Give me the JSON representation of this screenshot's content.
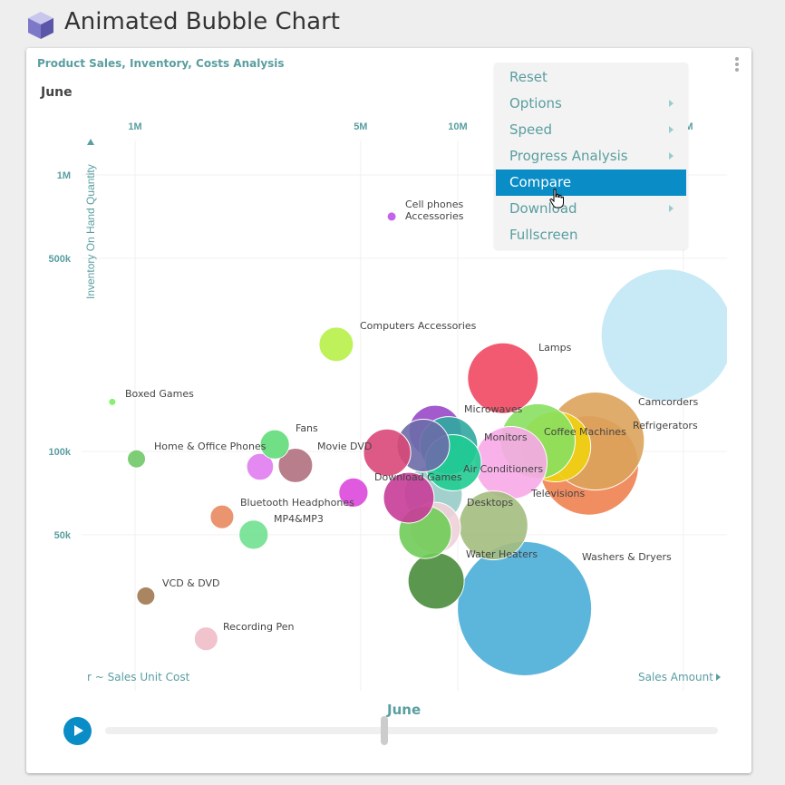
{
  "page": {
    "title": "Animated Bubble Chart"
  },
  "card": {
    "title": "Product Sales, Inventory, Costs Analysis",
    "period": "June"
  },
  "menu": {
    "items": [
      {
        "label": "Reset",
        "submenu": false
      },
      {
        "label": "Options",
        "submenu": true
      },
      {
        "label": "Speed",
        "submenu": true
      },
      {
        "label": "Progress Analysis",
        "submenu": true
      },
      {
        "label": "Compare",
        "submenu": false,
        "active": true
      },
      {
        "label": "Download",
        "submenu": true
      },
      {
        "label": "Fullscreen",
        "submenu": false
      }
    ]
  },
  "timeline": {
    "label": "June",
    "progress": 0.455,
    "play_label": "play"
  },
  "chart_data": {
    "type": "scatter",
    "subtype": "bubble",
    "title": "June",
    "xlabel": "Sales Amount",
    "ylabel": "Inventory On Hand Quantity",
    "size_label": "r ~ Sales Unit Cost",
    "xscale": "log",
    "yscale": "log",
    "xticks": [
      {
        "v": 1000000,
        "label": "1M"
      },
      {
        "v": 5000000,
        "label": "5M"
      },
      {
        "v": 10000000,
        "label": "10M"
      },
      {
        "v": 50000000,
        "label": "50M"
      }
    ],
    "yticks": [
      {
        "v": 1000000,
        "label": "1M"
      },
      {
        "v": 500000,
        "label": "500k"
      },
      {
        "v": 100000,
        "label": "100k"
      },
      {
        "v": 50000,
        "label": "50k"
      }
    ],
    "grid": true,
    "points": [
      {
        "name": "",
        "x": 44.6,
        "y": 263,
        "cost": 533,
        "color": "#c2e7f5"
      },
      {
        "name": "Washers & Dryers",
        "x": 16.1,
        "y": 27,
        "cost": 548,
        "color": "#4aaed8"
      },
      {
        "name": "Refrigerators",
        "x": 25.5,
        "y": 89,
        "cost": 300,
        "color": "#f08250"
      },
      {
        "name": "Camcorders",
        "x": 26.7,
        "y": 109,
        "cost": 292,
        "color": "#dba35c"
      },
      {
        "name": "Televisions",
        "x": 20.1,
        "y": 104,
        "cost": 150,
        "color": "#f0d010"
      },
      {
        "name": "Coffee Machines",
        "x": 17.7,
        "y": 109,
        "cost": 170,
        "color": "#88e060"
      },
      {
        "name": "Lamps",
        "x": 13.8,
        "y": 184,
        "cost": 152,
        "color": "#f04860"
      },
      {
        "name": "Monitors",
        "x": 14.6,
        "y": 91,
        "cost": 160,
        "color": "#f8a8e8"
      },
      {
        "name": "Desktops",
        "x": 12.9,
        "y": 54,
        "cost": 144,
        "color": "#a4bc80"
      },
      {
        "name": "Water Heaters",
        "x": 8.57,
        "y": 34,
        "cost": 96,
        "color": "#4a8c3c"
      },
      {
        "name": "",
        "x": 8.4,
        "y": 70,
        "cost": 102,
        "color": "#98ccc8"
      },
      {
        "name": "",
        "x": 8.51,
        "y": 53,
        "cost": 78,
        "color": "#f0d0d8"
      },
      {
        "name": "",
        "x": 7.92,
        "y": 51,
        "cost": 84,
        "color": "#70cc58"
      },
      {
        "name": "Microwaves",
        "x": 8.51,
        "y": 118,
        "cost": 84,
        "color": "#9848c8"
      },
      {
        "name": "",
        "x": 9.37,
        "y": 105,
        "cost": 102,
        "color": "#30a8a0"
      },
      {
        "name": "Air Conditioners",
        "x": 9.68,
        "y": 91,
        "cost": 96,
        "color": "#20cc92"
      },
      {
        "name": "",
        "x": 7.82,
        "y": 105,
        "cost": 84,
        "color": "#6c6ca8"
      },
      {
        "name": "",
        "x": 6.04,
        "y": 99,
        "cost": 68,
        "color": "#d84878"
      },
      {
        "name": "Download Games",
        "x": 7.05,
        "y": 68,
        "cost": 78,
        "color": "#c83c98"
      },
      {
        "name": "",
        "x": 4.75,
        "y": 71,
        "cost": 26,
        "color": "#dc48dc"
      },
      {
        "name": "Computers Accessories",
        "x": 4.2,
        "y": 244,
        "cost": 36,
        "color": "#b8f048"
      },
      {
        "name": "Cell phones Accessories",
        "x": 6.24,
        "y": 707,
        "cost": 2.5,
        "color": "#c050e8"
      },
      {
        "name": "Movie DVD",
        "x": 3.14,
        "y": 89,
        "cost": 36,
        "color": "#b07080"
      },
      {
        "name": "",
        "x": 2.44,
        "y": 88,
        "cost": 22,
        "color": "#e07cf0"
      },
      {
        "name": "Fans",
        "x": 2.71,
        "y": 106,
        "cost": 26,
        "color": "#60dc78"
      },
      {
        "name": "MP4&MP3",
        "x": 2.33,
        "y": 50,
        "cost": 26,
        "color": "#70e090"
      },
      {
        "name": "Bluetooth Headphones",
        "x": 1.86,
        "y": 58,
        "cost": 17,
        "color": "#e88860"
      },
      {
        "name": "Home & Office Phones",
        "x": 1.01,
        "y": 94,
        "cost": 10,
        "color": "#70c868"
      },
      {
        "name": "Boxed Games",
        "x": 0.85,
        "y": 151,
        "cost": 1.6,
        "color": "#78f060"
      },
      {
        "name": "VCD & DVD",
        "x": 1.08,
        "y": 30,
        "cost": 10,
        "color": "#a07850"
      },
      {
        "name": "Recording Pen",
        "x": 1.66,
        "y": 21,
        "cost": 17,
        "color": "#f0bcc8"
      }
    ],
    "x_units": "M",
    "y_units": "k"
  }
}
